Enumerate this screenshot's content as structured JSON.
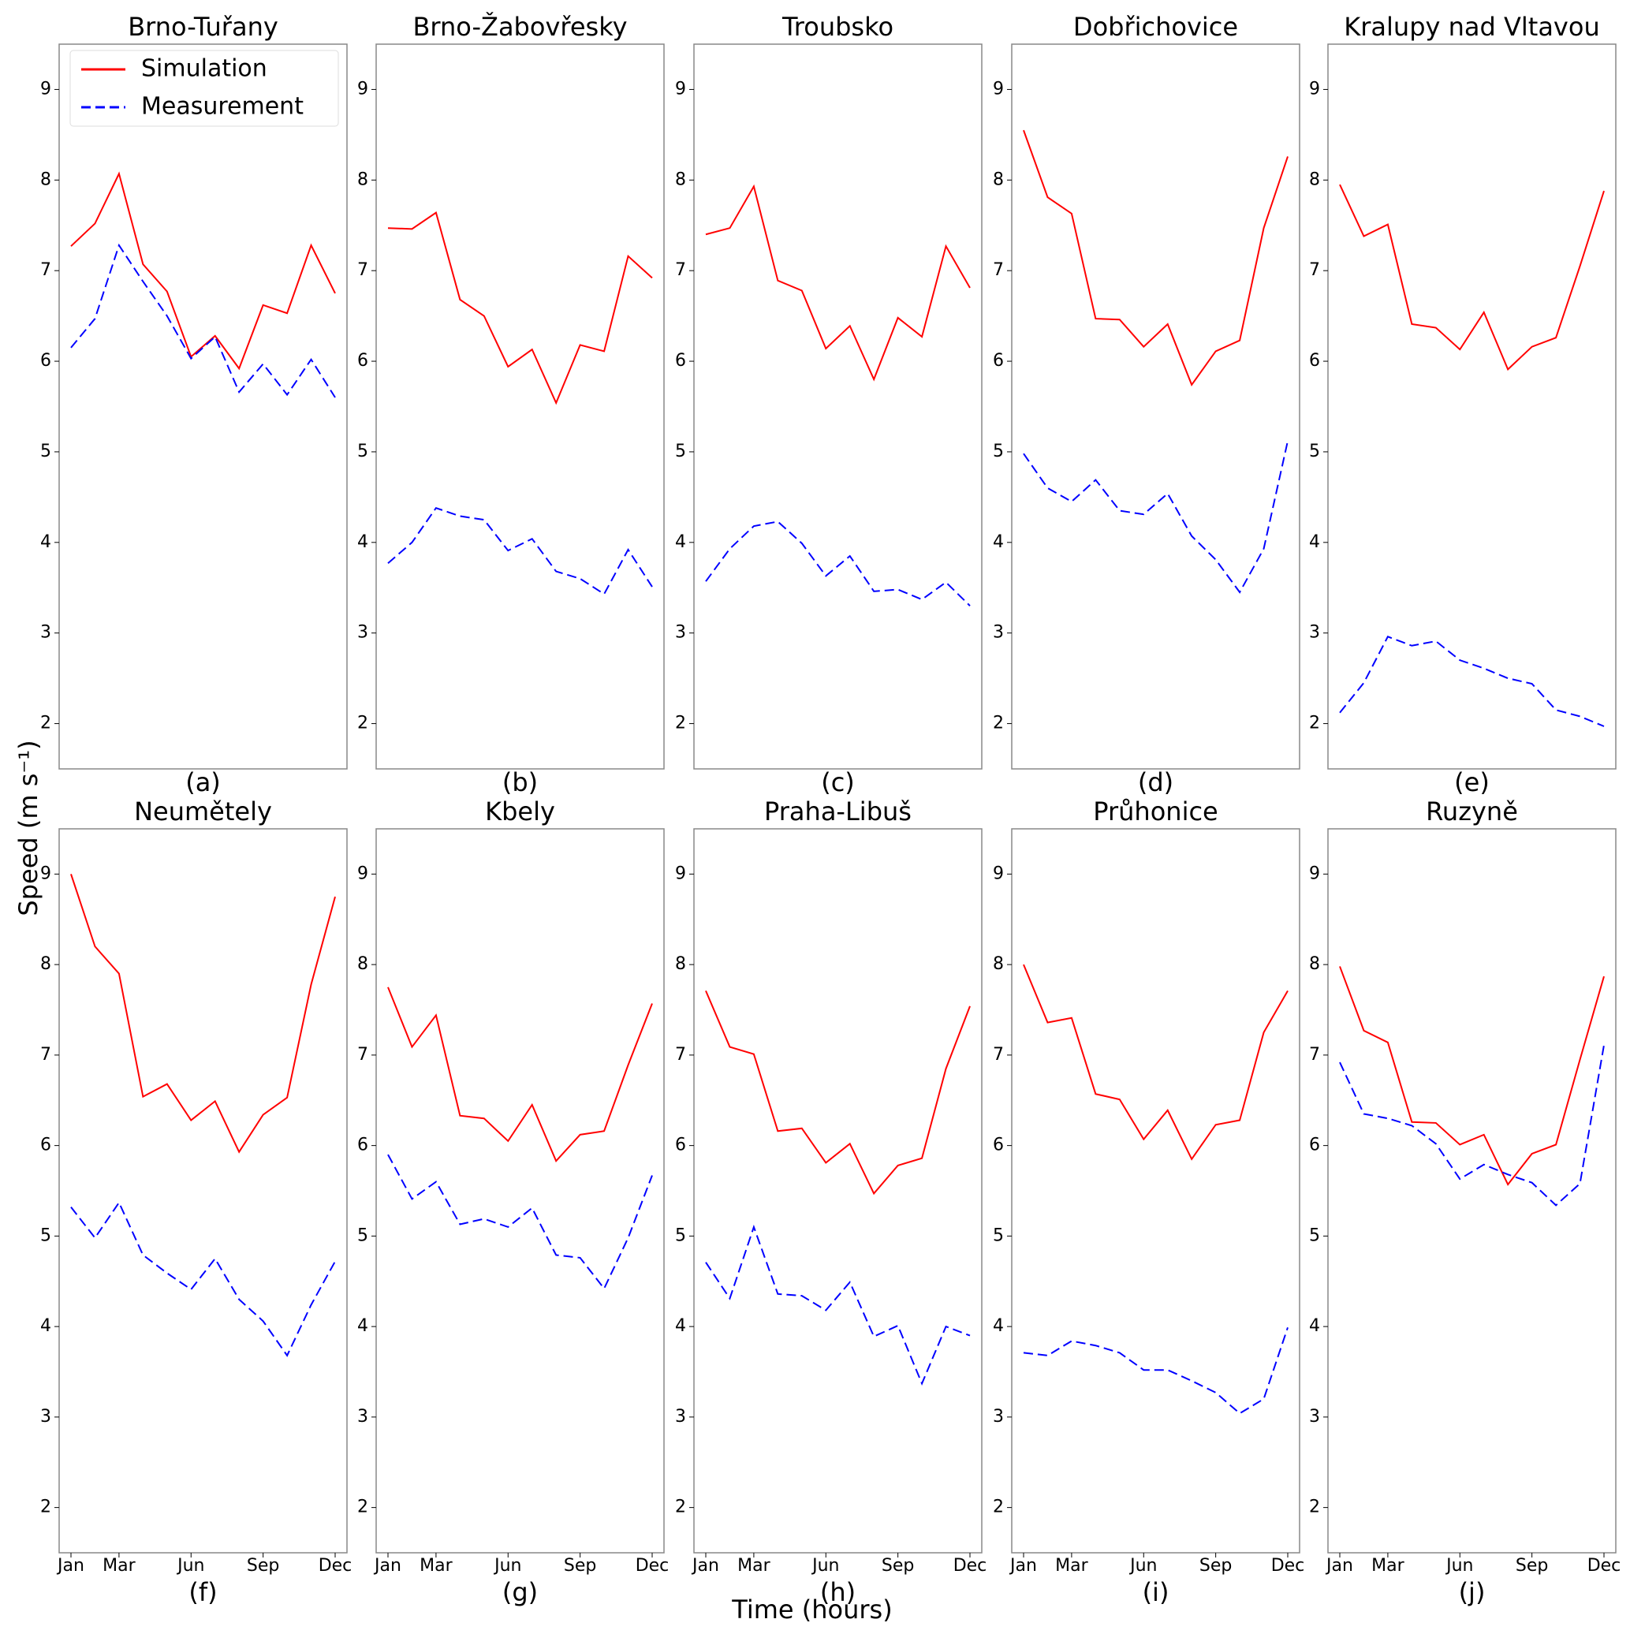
{
  "y_label": "Speed (m s⁻¹)",
  "x_label": "Time (hours)",
  "chart_data": [
    {
      "type": "line",
      "title": "Brno-Tuřany",
      "caption": "(a)",
      "legend": "upper left",
      "categories": [
        null,
        null,
        null,
        null,
        null,
        null,
        null,
        null,
        null,
        null,
        null,
        null
      ],
      "ylim": [
        1.5,
        9.5
      ],
      "yticks": [
        2,
        3,
        4,
        5,
        6,
        7,
        8,
        9
      ],
      "series": [
        {
          "name": "Simulation",
          "color": "#ff0000",
          "linestyle": "solid",
          "values": [
            7.27,
            7.52,
            8.07,
            7.07,
            6.77,
            6.05,
            6.28,
            5.92,
            6.62,
            6.53,
            7.28,
            6.75
          ]
        },
        {
          "name": "Measurement",
          "color": "#0000ff",
          "linestyle": "dashed",
          "values": [
            6.15,
            6.47,
            7.28,
            6.88,
            6.5,
            6.03,
            6.27,
            5.66,
            5.97,
            5.63,
            6.02,
            5.6
          ]
        }
      ]
    },
    {
      "type": "line",
      "title": "Brno-Žabovřesky",
      "caption": "(b)",
      "categories": [
        null,
        null,
        null,
        null,
        null,
        null,
        null,
        null,
        null,
        null,
        null,
        null
      ],
      "ylim": [
        1.5,
        9.5
      ],
      "yticks": [
        2,
        3,
        4,
        5,
        6,
        7,
        8,
        9
      ],
      "series": [
        {
          "color": "#ff0000",
          "linestyle": "solid",
          "values": [
            7.47,
            7.46,
            7.64,
            6.68,
            6.5,
            5.94,
            6.13,
            5.54,
            6.18,
            6.11,
            7.16,
            6.92
          ]
        },
        {
          "color": "#0000ff",
          "linestyle": "dashed",
          "values": [
            3.77,
            4.0,
            4.38,
            4.29,
            4.25,
            3.91,
            4.04,
            3.68,
            3.6,
            3.43,
            3.92,
            3.51
          ]
        }
      ]
    },
    {
      "type": "line",
      "title": "Troubsko",
      "caption": "(c)",
      "categories": [
        null,
        null,
        null,
        null,
        null,
        null,
        null,
        null,
        null,
        null,
        null,
        null
      ],
      "ylim": [
        1.5,
        9.5
      ],
      "yticks": [
        2,
        3,
        4,
        5,
        6,
        7,
        8,
        9
      ],
      "series": [
        {
          "color": "#ff0000",
          "linestyle": "solid",
          "values": [
            7.4,
            7.47,
            7.93,
            6.89,
            6.78,
            6.14,
            6.39,
            5.8,
            6.48,
            6.27,
            7.27,
            6.81
          ]
        },
        {
          "color": "#0000ff",
          "linestyle": "dashed",
          "values": [
            3.57,
            3.93,
            4.18,
            4.23,
            3.99,
            3.63,
            3.85,
            3.46,
            3.48,
            3.37,
            3.56,
            3.3
          ]
        }
      ]
    },
    {
      "type": "line",
      "title": "Dobřichovice",
      "caption": "(d)",
      "categories": [
        null,
        null,
        null,
        null,
        null,
        null,
        null,
        null,
        null,
        null,
        null,
        null
      ],
      "ylim": [
        1.5,
        9.5
      ],
      "yticks": [
        2,
        3,
        4,
        5,
        6,
        7,
        8,
        9
      ],
      "series": [
        {
          "color": "#ff0000",
          "linestyle": "solid",
          "values": [
            8.55,
            7.81,
            7.63,
            6.47,
            6.46,
            6.16,
            6.41,
            5.74,
            6.11,
            6.23,
            7.47,
            8.26
          ]
        },
        {
          "color": "#0000ff",
          "linestyle": "dashed",
          "values": [
            4.98,
            4.6,
            4.45,
            4.69,
            4.35,
            4.31,
            4.54,
            4.07,
            3.81,
            3.45,
            3.93,
            5.12
          ]
        }
      ]
    },
    {
      "type": "line",
      "title": "Kralupy nad Vltavou",
      "caption": "(e)",
      "categories": [
        null,
        null,
        null,
        null,
        null,
        null,
        null,
        null,
        null,
        null,
        null,
        null
      ],
      "ylim": [
        1.5,
        9.5
      ],
      "yticks": [
        2,
        3,
        4,
        5,
        6,
        7,
        8,
        9
      ],
      "series": [
        {
          "color": "#ff0000",
          "linestyle": "solid",
          "values": [
            7.95,
            7.38,
            7.51,
            6.41,
            6.37,
            6.13,
            6.54,
            5.91,
            6.16,
            6.26,
            7.05,
            7.88
          ]
        },
        {
          "color": "#0000ff",
          "linestyle": "dashed",
          "values": [
            2.12,
            2.45,
            2.96,
            2.86,
            2.91,
            2.7,
            2.61,
            2.5,
            2.44,
            2.15,
            2.08,
            1.97
          ]
        }
      ]
    },
    {
      "type": "line",
      "title": "Neumětely",
      "caption": "(f)",
      "categories": [
        "Jan",
        null,
        "Mar",
        null,
        null,
        "Jun",
        null,
        null,
        "Sep",
        null,
        null,
        "Dec"
      ],
      "ylim": [
        1.5,
        9.5
      ],
      "yticks": [
        2,
        3,
        4,
        5,
        6,
        7,
        8,
        9
      ],
      "series": [
        {
          "color": "#ff0000",
          "linestyle": "solid",
          "values": [
            9.0,
            8.2,
            7.9,
            6.54,
            6.68,
            6.28,
            6.49,
            5.93,
            6.34,
            6.53,
            7.78,
            8.75
          ]
        },
        {
          "color": "#0000ff",
          "linestyle": "dashed",
          "values": [
            5.32,
            4.98,
            5.37,
            4.79,
            4.59,
            4.41,
            4.75,
            4.3,
            4.06,
            3.68,
            4.24,
            4.72
          ]
        }
      ]
    },
    {
      "type": "line",
      "title": "Kbely",
      "caption": "(g)",
      "categories": [
        "Jan",
        null,
        "Mar",
        null,
        null,
        "Jun",
        null,
        null,
        "Sep",
        null,
        null,
        "Dec"
      ],
      "ylim": [
        1.5,
        9.5
      ],
      "yticks": [
        2,
        3,
        4,
        5,
        6,
        7,
        8,
        9
      ],
      "series": [
        {
          "color": "#ff0000",
          "linestyle": "solid",
          "values": [
            7.75,
            7.09,
            7.44,
            6.33,
            6.3,
            6.05,
            6.45,
            5.83,
            6.12,
            6.16,
            6.89,
            7.57
          ]
        },
        {
          "color": "#0000ff",
          "linestyle": "dashed",
          "values": [
            5.9,
            5.41,
            5.6,
            5.13,
            5.19,
            5.1,
            5.31,
            4.79,
            4.76,
            4.42,
            4.98,
            5.67
          ]
        }
      ]
    },
    {
      "type": "line",
      "title": "Praha-Libuš",
      "caption": "(h)",
      "categories": [
        "Jan",
        null,
        "Mar",
        null,
        null,
        "Jun",
        null,
        null,
        "Sep",
        null,
        null,
        "Dec"
      ],
      "ylim": [
        1.5,
        9.5
      ],
      "yticks": [
        2,
        3,
        4,
        5,
        6,
        7,
        8,
        9
      ],
      "series": [
        {
          "color": "#ff0000",
          "linestyle": "solid",
          "values": [
            7.71,
            7.09,
            7.01,
            6.16,
            6.19,
            5.81,
            6.02,
            5.47,
            5.78,
            5.86,
            6.85,
            7.54
          ]
        },
        {
          "color": "#0000ff",
          "linestyle": "dashed",
          "values": [
            4.71,
            4.31,
            5.1,
            4.36,
            4.34,
            4.18,
            4.49,
            3.89,
            4.01,
            3.37,
            4.0,
            3.9
          ]
        }
      ]
    },
    {
      "type": "line",
      "title": "Průhonice",
      "caption": "(i)",
      "categories": [
        "Jan",
        null,
        "Mar",
        null,
        null,
        "Jun",
        null,
        null,
        "Sep",
        null,
        null,
        "Dec"
      ],
      "ylim": [
        1.5,
        9.5
      ],
      "yticks": [
        2,
        3,
        4,
        5,
        6,
        7,
        8,
        9
      ],
      "series": [
        {
          "color": "#ff0000",
          "linestyle": "solid",
          "values": [
            8.0,
            7.36,
            7.41,
            6.57,
            6.51,
            6.07,
            6.39,
            5.85,
            6.23,
            6.28,
            7.25,
            7.71
          ]
        },
        {
          "color": "#0000ff",
          "linestyle": "dashed",
          "values": [
            3.71,
            3.68,
            3.84,
            3.79,
            3.71,
            3.52,
            3.52,
            3.4,
            3.27,
            3.04,
            3.2,
            3.99
          ]
        }
      ]
    },
    {
      "type": "line",
      "title": "Ruzyně",
      "caption": "(j)",
      "categories": [
        "Jan",
        null,
        "Mar",
        null,
        null,
        "Jun",
        null,
        null,
        "Sep",
        null,
        null,
        "Dec"
      ],
      "ylim": [
        1.5,
        9.5
      ],
      "yticks": [
        2,
        3,
        4,
        5,
        6,
        7,
        8,
        9
      ],
      "series": [
        {
          "color": "#ff0000",
          "linestyle": "solid",
          "values": [
            7.98,
            7.27,
            7.14,
            6.26,
            6.25,
            6.01,
            6.12,
            5.57,
            5.91,
            6.01,
            6.95,
            7.87
          ]
        },
        {
          "color": "#0000ff",
          "linestyle": "dashed",
          "values": [
            6.92,
            6.35,
            6.3,
            6.22,
            6.02,
            5.63,
            5.79,
            5.68,
            5.59,
            5.34,
            5.58,
            7.11
          ]
        }
      ]
    }
  ]
}
